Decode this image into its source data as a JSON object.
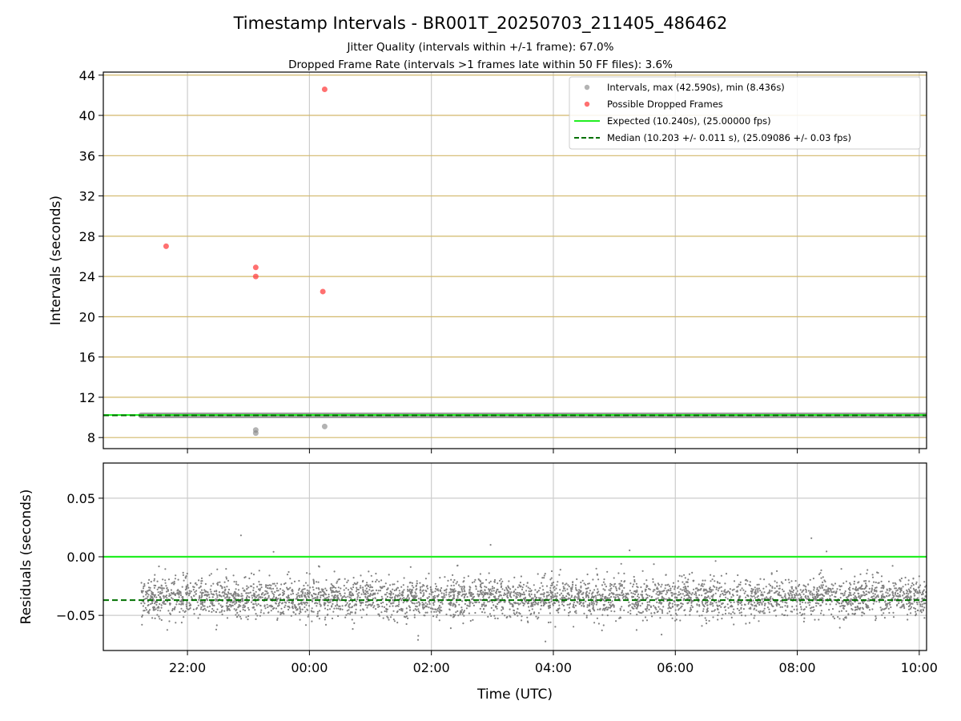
{
  "title": "Timestamp Intervals - BR001T_20250703_211405_486462",
  "subtitle_1": "Jitter Quality (intervals within +/-1 frame): 67.0%",
  "subtitle_2": "Dropped Frame Rate (intervals >1 frames late within 50 FF files): 3.6%",
  "colors": {
    "intervals": "#808080",
    "dropped": "#ff4040",
    "expected": "#22ee22",
    "median": "#007000",
    "hgrid_top": "#d2b86a",
    "grid": "#cccccc"
  },
  "chart_data": [
    {
      "type": "scatter",
      "ylabel": "Intervals (seconds)",
      "xlim_hours": [
        20.62,
        34.12
      ],
      "ylim": [
        6.9,
        44.3
      ],
      "yticks": [
        "8",
        "12",
        "16",
        "20",
        "24",
        "28",
        "32",
        "36",
        "40",
        "44"
      ],
      "legend_position": "top-right",
      "legend": [
        "Intervals, max (42.590s), min (8.436s)",
        "Possible Dropped Frames",
        "Expected (10.240s), (25.00000 fps)",
        "Median (10.203 +/- 0.011 s), (25.09086 +/- 0.03 fps)"
      ],
      "series": [
        {
          "name": "Intervals, max (42.590s), min (8.436s)",
          "x_range_hours": [
            21.24,
            34.12
          ],
          "typical_value": 10.2,
          "outliers": [
            {
              "x": 23.12,
              "y": 8.44
            },
            {
              "x": 23.12,
              "y": 8.75
            },
            {
              "x": 24.25,
              "y": 9.1
            }
          ]
        },
        {
          "name": "Possible Dropped Frames",
          "points": [
            {
              "x": 21.65,
              "y": 27.0
            },
            {
              "x": 23.12,
              "y": 24.9
            },
            {
              "x": 23.12,
              "y": 24.0
            },
            {
              "x": 24.22,
              "y": 22.5
            },
            {
              "x": 24.25,
              "y": 42.59
            }
          ]
        },
        {
          "name": "Expected (10.240s), (25.00000 fps)",
          "value": 10.24
        },
        {
          "name": "Median (10.203 +/- 0.011 s), (25.09086 +/- 0.03 fps)",
          "value": 10.203
        }
      ]
    },
    {
      "type": "scatter",
      "xlabel": "Time (UTC)",
      "ylabel": "Residuals (seconds)",
      "xlim_hours": [
        20.62,
        34.12
      ],
      "ylim": [
        -0.08,
        0.08
      ],
      "yticks": [
        "0.05",
        "0.00",
        "−0.05"
      ],
      "yticks_values": [
        0.05,
        0.0,
        -0.05
      ],
      "xticks": [
        "22:00",
        "00:00",
        "02:00",
        "04:00",
        "06:00",
        "08:00",
        "10:00"
      ],
      "xticks_hours": [
        22,
        24,
        26,
        28,
        30,
        32,
        34
      ],
      "expected_line": 0.0,
      "median_line": -0.037,
      "residual_band": {
        "x_range_hours": [
          21.24,
          34.12
        ],
        "center": -0.035,
        "spread": 0.015,
        "min": -0.08,
        "max": 0.022
      }
    }
  ]
}
